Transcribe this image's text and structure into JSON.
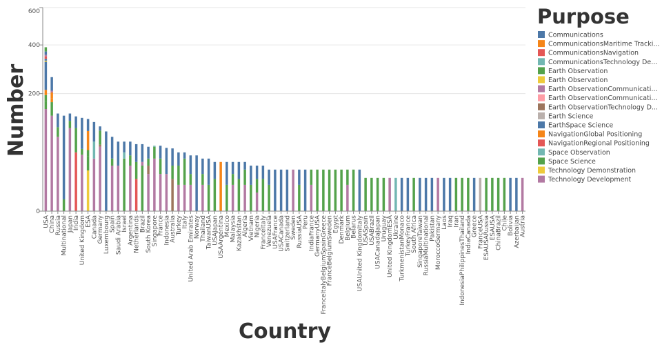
{
  "chart_data": {
    "type": "bar",
    "stacked": true,
    "xlabel": "Country",
    "ylabel": "Number",
    "y_scale": "sqrt",
    "ylim": [
      0,
      600
    ],
    "y_ticks": [
      0,
      200,
      400,
      600
    ],
    "grid": true,
    "legend_title": "Purpose",
    "legend_position": "right",
    "series": [
      {
        "name": "Communications",
        "color": "#4c78a8"
      },
      {
        "name": "CommunicationsMaritime Tracki...",
        "color": "#f58518"
      },
      {
        "name": "CommunicationsNavigation",
        "color": "#e45756"
      },
      {
        "name": "CommunicationsTechnology De...",
        "color": "#72b7b2"
      },
      {
        "name": "Earth Observation",
        "color": "#54a24b"
      },
      {
        "name": "Earth Observation",
        "color": "#eeca3b"
      },
      {
        "name": "Earth ObservationCommunicati...",
        "color": "#b279a2"
      },
      {
        "name": "Earth ObservationCommunicati...",
        "color": "#ff9da6"
      },
      {
        "name": "Earth ObservationTechnology D...",
        "color": "#9d755d"
      },
      {
        "name": "Earth Science",
        "color": "#bab0ac"
      },
      {
        "name": "EarthSpace Science",
        "color": "#4c78a8"
      },
      {
        "name": "NavigationGlobal Positioning",
        "color": "#f58518"
      },
      {
        "name": "NavigationRegional Positioning",
        "color": "#e45756"
      },
      {
        "name": "Space Observation",
        "color": "#72b7b2"
      },
      {
        "name": "Space Science",
        "color": "#54a24b"
      },
      {
        "name": "Technology Demonstration",
        "color": "#eeca3b"
      },
      {
        "name": "Technology Development",
        "color": "#b279a2"
      }
    ],
    "bars": [
      {
        "c": "USA",
        "segs": [
          [
            16,
            151
          ],
          [
            4,
            24
          ],
          [
            14,
            20
          ],
          [
            1,
            18
          ],
          [
            0,
            110
          ],
          [
            5,
            5
          ],
          [
            10,
            8
          ],
          [
            12,
            11
          ],
          [
            6,
            7
          ],
          [
            0,
            15
          ],
          [
            14,
            20
          ]
        ]
      },
      {
        "c": "China",
        "segs": [
          [
            16,
            132
          ],
          [
            4,
            40
          ],
          [
            1,
            12
          ],
          [
            11,
            20
          ],
          [
            6,
            6
          ],
          [
            0,
            50
          ]
        ]
      },
      {
        "c": "Russia",
        "segs": [
          [
            16,
            80
          ],
          [
            4,
            22
          ],
          [
            0,
            36
          ]
        ]
      },
      {
        "c": "Multinational",
        "segs": [
          [
            4,
            2
          ],
          [
            0,
            130
          ]
        ]
      },
      {
        "c": "Japan",
        "segs": [
          [
            16,
            100
          ],
          [
            4,
            18
          ],
          [
            0,
            20
          ]
        ]
      },
      {
        "c": "India",
        "segs": [
          [
            12,
            50
          ],
          [
            4,
            50
          ],
          [
            0,
            30
          ]
        ]
      },
      {
        "c": "United Kingdom",
        "segs": [
          [
            16,
            46
          ],
          [
            4,
            10
          ],
          [
            0,
            70
          ]
        ]
      },
      {
        "c": "ESA",
        "segs": [
          [
            15,
            24
          ],
          [
            14,
            20
          ],
          [
            4,
            10
          ],
          [
            11,
            39
          ],
          [
            0,
            30
          ]
        ]
      },
      {
        "c": "Canada",
        "segs": [
          [
            16,
            40
          ],
          [
            3,
            30
          ],
          [
            0,
            45
          ]
        ]
      },
      {
        "c": "Germany",
        "segs": [
          [
            16,
            60
          ],
          [
            8,
            4
          ],
          [
            4,
            30
          ],
          [
            0,
            10
          ]
        ]
      },
      {
        "c": "Luxembourg",
        "segs": [
          [
            0,
            92
          ]
        ]
      },
      {
        "c": "Spain",
        "segs": [
          [
            16,
            30
          ],
          [
            4,
            10
          ],
          [
            0,
            40
          ]
        ]
      },
      {
        "c": "Saudi Arabia",
        "segs": [
          [
            16,
            30
          ],
          [
            0,
            40
          ]
        ]
      },
      {
        "c": "Israel",
        "segs": [
          [
            4,
            40
          ],
          [
            13,
            10
          ],
          [
            0,
            20
          ]
        ]
      },
      {
        "c": "Argentina",
        "segs": [
          [
            16,
            30
          ],
          [
            4,
            15
          ],
          [
            0,
            25
          ]
        ]
      },
      {
        "c": "Netherlands",
        "segs": [
          [
            12,
            15
          ],
          [
            4,
            20
          ],
          [
            0,
            30
          ]
        ]
      },
      {
        "c": "Brazil",
        "segs": [
          [
            4,
            30
          ],
          [
            16,
            5
          ],
          [
            0,
            30
          ]
        ]
      },
      {
        "c": "South Korea",
        "segs": [
          [
            16,
            20
          ],
          [
            8,
            10
          ],
          [
            4,
            10
          ],
          [
            0,
            20
          ]
        ]
      },
      {
        "c": "Singapore",
        "segs": [
          [
            16,
            40
          ],
          [
            4,
            20
          ],
          [
            13,
            2
          ]
        ]
      },
      {
        "c": "France",
        "segs": [
          [
            16,
            20
          ],
          [
            4,
            20
          ],
          [
            0,
            22
          ]
        ]
      },
      {
        "c": "Indonesia",
        "segs": [
          [
            16,
            20
          ],
          [
            0,
            38
          ]
        ]
      },
      {
        "c": "Australia",
        "segs": [
          [
            8,
            15
          ],
          [
            4,
            15
          ],
          [
            0,
            27
          ]
        ]
      },
      {
        "c": "Turkey",
        "segs": [
          [
            16,
            10
          ],
          [
            4,
            20
          ],
          [
            0,
            20
          ]
        ]
      },
      {
        "c": "Italy",
        "segs": [
          [
            16,
            10
          ],
          [
            4,
            30
          ],
          [
            0,
            10
          ]
        ]
      },
      {
        "c": "United Arab Emirates",
        "segs": [
          [
            16,
            10
          ],
          [
            4,
            10
          ],
          [
            0,
            25
          ]
        ]
      },
      {
        "c": "Norway",
        "segs": [
          [
            0,
            45
          ]
        ]
      },
      {
        "c": "Thailand",
        "segs": [
          [
            16,
            10
          ],
          [
            4,
            10
          ],
          [
            0,
            20
          ]
        ]
      },
      {
        "c": "TaiwanUSA",
        "segs": [
          [
            4,
            10
          ],
          [
            0,
            30
          ]
        ]
      },
      {
        "c": "USAJapan",
        "segs": [
          [
            4,
            15
          ],
          [
            0,
            20
          ]
        ]
      },
      {
        "c": "USAArgentina",
        "segs": [
          [
            1,
            35
          ]
        ]
      },
      {
        "c": "Mexico",
        "segs": [
          [
            4,
            10
          ],
          [
            0,
            25
          ]
        ]
      },
      {
        "c": "Malaysia",
        "segs": [
          [
            16,
            10
          ],
          [
            4,
            10
          ],
          [
            0,
            15
          ]
        ]
      },
      {
        "c": "Kazakhstan",
        "segs": [
          [
            4,
            15
          ],
          [
            0,
            20
          ]
        ]
      },
      {
        "c": "Algeria",
        "segs": [
          [
            16,
            10
          ],
          [
            4,
            15
          ],
          [
            0,
            10
          ]
        ]
      },
      {
        "c": "Vietnam",
        "segs": [
          [
            4,
            10
          ],
          [
            0,
            20
          ]
        ]
      },
      {
        "c": "Nigeria",
        "segs": [
          [
            16,
            5
          ],
          [
            4,
            10
          ],
          [
            0,
            15
          ]
        ]
      },
      {
        "c": "FranceItaly",
        "segs": [
          [
            4,
            15
          ],
          [
            0,
            15
          ]
        ]
      },
      {
        "c": "Venezuela",
        "segs": [
          [
            4,
            10
          ],
          [
            0,
            15
          ]
        ]
      },
      {
        "c": "USAFrance",
        "segs": [
          [
            0,
            25
          ]
        ]
      },
      {
        "c": "USACanada",
        "segs": [
          [
            0,
            25
          ]
        ]
      },
      {
        "c": "Switzerland",
        "segs": [
          [
            0,
            25
          ]
        ]
      },
      {
        "c": "Sweden",
        "segs": [
          [
            16,
            25
          ]
        ]
      },
      {
        "c": "RussiaUSA",
        "segs": [
          [
            4,
            10
          ],
          [
            0,
            15
          ]
        ]
      },
      {
        "c": "Peru",
        "segs": [
          [
            0,
            25
          ]
        ]
      },
      {
        "c": "IndiaFrance",
        "segs": [
          [
            16,
            10
          ],
          [
            4,
            15
          ]
        ]
      },
      {
        "c": "GermanyUSA",
        "segs": [
          [
            4,
            25
          ]
        ]
      },
      {
        "c": "FranceItalyBelgiumSpainGreece",
        "segs": [
          [
            4,
            25
          ]
        ]
      },
      {
        "c": "FranceBelgiumSweden",
        "segs": [
          [
            4,
            25
          ]
        ]
      },
      {
        "c": "Egypt",
        "segs": [
          [
            4,
            25
          ]
        ]
      },
      {
        "c": "Denmark",
        "segs": [
          [
            4,
            25
          ]
        ]
      },
      {
        "c": "Belgium",
        "segs": [
          [
            16,
            10
          ],
          [
            4,
            15
          ]
        ]
      },
      {
        "c": "Belarus",
        "segs": [
          [
            4,
            25
          ]
        ]
      },
      {
        "c": "USAUnited KingdomItaly",
        "segs": [
          [
            0,
            25
          ]
        ]
      },
      {
        "c": "USASpain",
        "segs": [
          [
            4,
            16
          ]
        ]
      },
      {
        "c": "USABrazil",
        "segs": [
          [
            4,
            16
          ]
        ]
      },
      {
        "c": "USACanadaJapan",
        "segs": [
          [
            4,
            16
          ]
        ]
      },
      {
        "c": "Uruguay",
        "segs": [
          [
            4,
            16
          ]
        ]
      },
      {
        "c": "United KingdomESA",
        "segs": [
          [
            16,
            16
          ]
        ]
      },
      {
        "c": "Ukraine",
        "segs": [
          [
            13,
            16
          ]
        ]
      },
      {
        "c": "TurkmenistanMonaco",
        "segs": [
          [
            0,
            16
          ]
        ]
      },
      {
        "c": "TurkeyFrance",
        "segs": [
          [
            0,
            16
          ]
        ]
      },
      {
        "c": "South Africa",
        "segs": [
          [
            4,
            16
          ]
        ]
      },
      {
        "c": "SingaporeTaiwan",
        "segs": [
          [
            0,
            16
          ]
        ]
      },
      {
        "c": "RussiaMultinational",
        "segs": [
          [
            0,
            16
          ]
        ]
      },
      {
        "c": "Pakistan",
        "segs": [
          [
            0,
            16
          ]
        ]
      },
      {
        "c": "MoroccoGermany",
        "segs": [
          [
            16,
            16
          ]
        ]
      },
      {
        "c": "Laos",
        "segs": [
          [
            0,
            16
          ]
        ]
      },
      {
        "c": "Iraq",
        "segs": [
          [
            0,
            16
          ]
        ]
      },
      {
        "c": "Iran",
        "segs": [
          [
            4,
            16
          ]
        ]
      },
      {
        "c": "IndonesiaPhilippinesThailand",
        "segs": [
          [
            4,
            16
          ]
        ]
      },
      {
        "c": "IndiaCanada",
        "segs": [
          [
            4,
            16
          ]
        ]
      },
      {
        "c": "Greece",
        "segs": [
          [
            0,
            16
          ]
        ]
      },
      {
        "c": "FranceUSA",
        "segs": [
          [
            9,
            16
          ]
        ]
      },
      {
        "c": "ESAUSARussia",
        "segs": [
          [
            4,
            16
          ]
        ]
      },
      {
        "c": "ESAUSA",
        "segs": [
          [
            4,
            16
          ]
        ]
      },
      {
        "c": "ChinaBrazil",
        "segs": [
          [
            4,
            16
          ]
        ]
      },
      {
        "c": "Chile",
        "segs": [
          [
            4,
            16
          ]
        ]
      },
      {
        "c": "Bolivia",
        "segs": [
          [
            0,
            16
          ]
        ]
      },
      {
        "c": "Azerbaijan",
        "segs": [
          [
            0,
            16
          ]
        ]
      },
      {
        "c": "Austria",
        "segs": [
          [
            16,
            16
          ]
        ]
      }
    ]
  }
}
